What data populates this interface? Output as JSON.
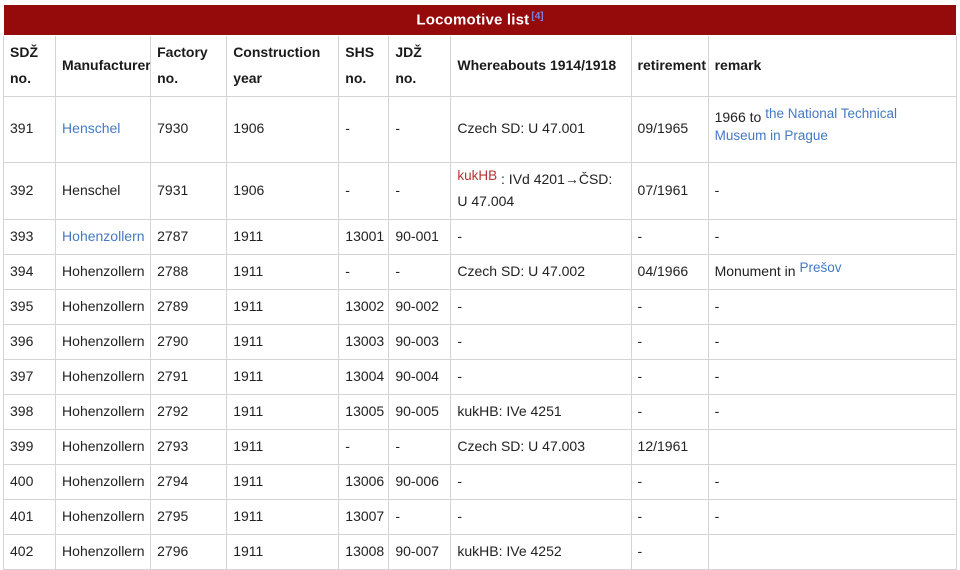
{
  "title": {
    "text": "Locomotive list",
    "ref": "[4]"
  },
  "colors": {
    "title_bg": "#950a0a",
    "title_text": "#ffffff",
    "reference": "#7d82dc",
    "link": "#4579c4",
    "red_link": "#b43434",
    "text": "#222222",
    "border": "#d4d4d4",
    "background": "#ffffff"
  },
  "columns": [
    {
      "key": "sdz-no",
      "label": "SDŽ\nno."
    },
    {
      "key": "manufacturer",
      "label": "Manufacturer"
    },
    {
      "key": "factory-no",
      "label": "Factory\nno."
    },
    {
      "key": "construction-year",
      "label": "Construction\nyear"
    },
    {
      "key": "shs-no",
      "label": "SHS\nno."
    },
    {
      "key": "jdz-no",
      "label": "JDŽ\nno."
    },
    {
      "key": "whereabouts",
      "label": "Whereabouts 1914/1918"
    },
    {
      "key": "retirement",
      "label": "retirement"
    },
    {
      "key": "remark",
      "label": "remark"
    }
  ],
  "rows": [
    {
      "cells": [
        "391",
        [
          {
            "t": "Henschel",
            "kind": "link"
          }
        ],
        "7930",
        "1906",
        "-",
        "-",
        [
          {
            "t": "Czech SD: U 47.001"
          }
        ],
        "09/1965",
        [
          {
            "t": "1966 to "
          },
          {
            "t": "the National Technical Museum in Prague",
            "kind": "link",
            "raise": true
          }
        ]
      ]
    },
    {
      "cells": [
        "392",
        "Henschel",
        "7931",
        "1906",
        "-",
        "-",
        [
          {
            "t": "kukHB",
            "kind": "redlink",
            "raise": true
          },
          {
            "t": " : IVd 4201→ČSD: U 47.004"
          }
        ],
        "07/1961",
        "-"
      ]
    },
    {
      "cells": [
        "393",
        [
          {
            "t": "Hohenzollern",
            "kind": "link"
          }
        ],
        "2787",
        "1911",
        "13001",
        "90-001",
        "-",
        "-",
        "-"
      ]
    },
    {
      "cells": [
        "394",
        "Hohenzollern",
        "2788",
        "1911",
        "-",
        "-",
        [
          {
            "t": "Czech SD: U 47.002"
          }
        ],
        "04/1966",
        [
          {
            "t": "Monument in "
          },
          {
            "t": "Prešov",
            "kind": "link",
            "raise": true
          }
        ]
      ]
    },
    {
      "cells": [
        "395",
        "Hohenzollern",
        "2789",
        "1911",
        "13002",
        "90-002",
        "-",
        "-",
        "-"
      ]
    },
    {
      "cells": [
        "396",
        "Hohenzollern",
        "2790",
        "1911",
        "13003",
        "90-003",
        "-",
        "-",
        "-"
      ]
    },
    {
      "cells": [
        "397",
        "Hohenzollern",
        "2791",
        "1911",
        "13004",
        "90-004",
        "-",
        "-",
        "-"
      ]
    },
    {
      "cells": [
        "398",
        "Hohenzollern",
        "2792",
        "1911",
        "13005",
        "90-005",
        "kukHB: IVe 4251",
        "-",
        "-"
      ]
    },
    {
      "cells": [
        "399",
        "Hohenzollern",
        "2793",
        "1911",
        "-",
        "-",
        "Czech SD: U 47.003",
        "12/1961",
        ""
      ]
    },
    {
      "cells": [
        "400",
        "Hohenzollern",
        "2794",
        "1911",
        "13006",
        "90-006",
        "-",
        "-",
        "-"
      ]
    },
    {
      "cells": [
        "401",
        "Hohenzollern",
        "2795",
        "1911",
        "13007",
        "-",
        "-",
        "-",
        "-"
      ]
    },
    {
      "cells": [
        "402",
        "Hohenzollern",
        "2796",
        "1911",
        "13008",
        "90-007",
        "kukHB: IVe 4252",
        "-",
        ""
      ]
    }
  ]
}
